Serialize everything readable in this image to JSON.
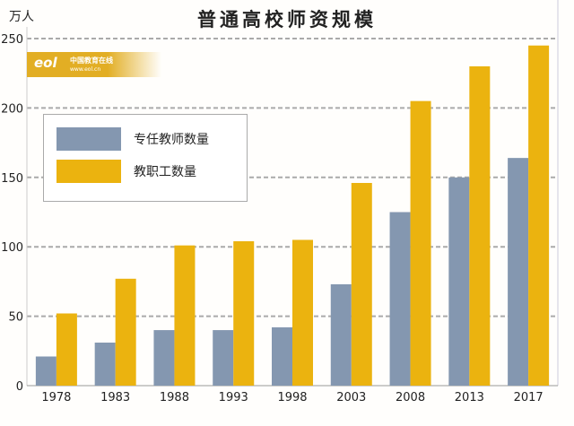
{
  "chart_data": {
    "type": "bar",
    "title": "普通高校师资规模",
    "ylabel": "万人",
    "xlabel": "",
    "ylim": [
      0,
      250
    ],
    "yticks": [
      0,
      50,
      100,
      150,
      200,
      250
    ],
    "grid": true,
    "legend_position": "top-left",
    "categories": [
      "1978",
      "1983",
      "1988",
      "1993",
      "1998",
      "2003",
      "2008",
      "2013",
      "2017"
    ],
    "series": [
      {
        "name": "专任教师数量",
        "color": "#8497b0",
        "values": [
          21,
          31,
          40,
          40,
          42,
          73,
          125,
          150,
          164
        ]
      },
      {
        "name": "教职工数量",
        "color": "#ebb30f",
        "values": [
          52,
          77,
          101,
          104,
          105,
          146,
          205,
          230,
          245
        ]
      }
    ]
  },
  "watermark": {
    "logo": "eol",
    "text": "中国教育在线",
    "url": "www.eol.cn"
  }
}
